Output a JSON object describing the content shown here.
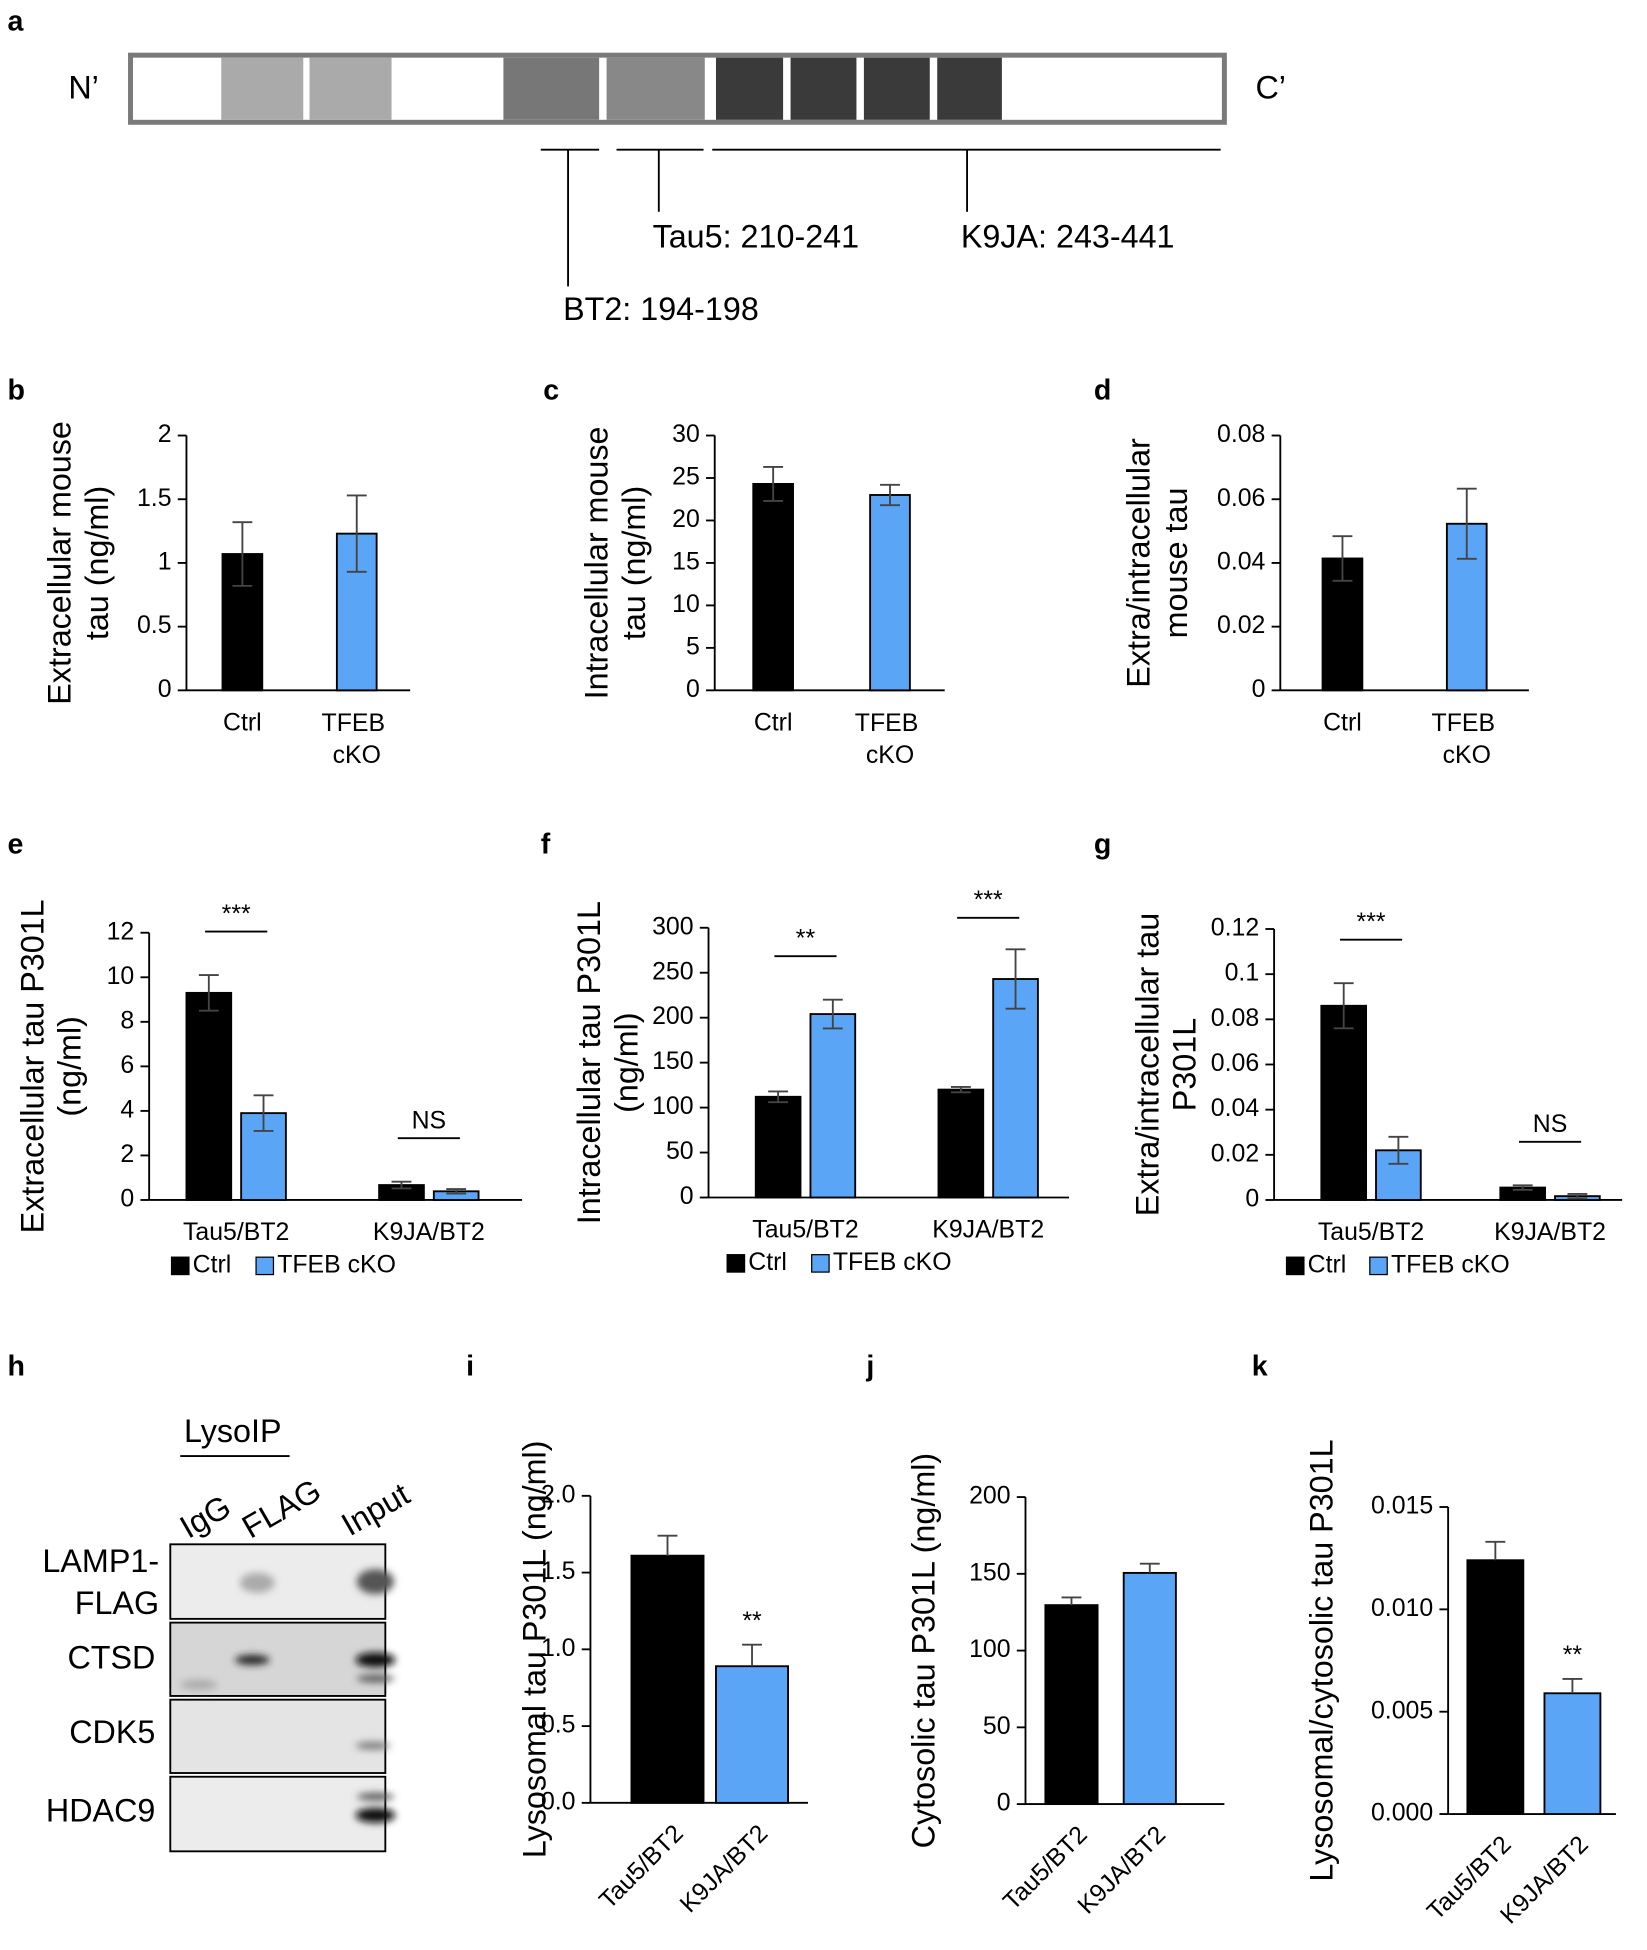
{
  "diagram": {
    "panel": "a",
    "n_label": "N’",
    "c_label": "C’",
    "epitopes": [
      "BT2: 194-198",
      "Tau5: 210-241",
      "K9JA: 243-441"
    ]
  },
  "chart_data": [
    {
      "panel": "b",
      "type": "bar",
      "ylabel": [
        "Extracellular mouse",
        "tau (ng/ml)"
      ],
      "categories": [
        "Ctrl",
        "TFEB cKO"
      ],
      "values": [
        1.07,
        1.23
      ],
      "errors": [
        0.25,
        0.3
      ],
      "colors": [
        "#000000",
        "#5aa5f5"
      ],
      "error_bars": "both",
      "ylim": [
        0,
        2
      ],
      "yticks": [
        0,
        0.5,
        1,
        1.5,
        2
      ]
    },
    {
      "panel": "c",
      "type": "bar",
      "ylabel": [
        "Intracellular mouse",
        "tau (ng/ml)"
      ],
      "categories": [
        "Ctrl",
        "TFEB cKO"
      ],
      "values": [
        24.3,
        23.0
      ],
      "errors": [
        2.0,
        1.2
      ],
      "colors": [
        "#000000",
        "#5aa5f5"
      ],
      "error_bars": "both",
      "ylim": [
        0,
        30
      ],
      "yticks": [
        0,
        5,
        10,
        15,
        20,
        25,
        30
      ]
    },
    {
      "panel": "d",
      "type": "bar",
      "ylabel": [
        "Extra/intracellular",
        "mouse tau"
      ],
      "categories": [
        "Ctrl",
        "TFEB cKO"
      ],
      "values": [
        0.0414,
        0.0523
      ],
      "errors": [
        0.007,
        0.011
      ],
      "colors": [
        "#000000",
        "#5aa5f5"
      ],
      "error_bars": "both",
      "ylim": [
        0,
        0.08
      ],
      "yticks": [
        0,
        0.02,
        0.04,
        0.06,
        0.08
      ]
    },
    {
      "panel": "e",
      "type": "bar",
      "ylabel": [
        "Extracellular tau P301L",
        "(ng/ml)"
      ],
      "categories": [
        "Tau5/BT2",
        "K9JA/BT2"
      ],
      "series": [
        {
          "name": "Ctrl",
          "color": "#000000",
          "values": [
            9.3,
            0.67
          ],
          "errors": [
            0.8,
            0.15
          ]
        },
        {
          "name": "TFEB cKO",
          "color": "#5aa5f5",
          "values": [
            3.9,
            0.39
          ],
          "errors": [
            0.8,
            0.1
          ]
        }
      ],
      "significance": [
        "***",
        "NS"
      ],
      "error_bars": "both",
      "ylim": [
        0,
        12
      ],
      "yticks": [
        0,
        2,
        4,
        6,
        8,
        10,
        12
      ]
    },
    {
      "panel": "f",
      "type": "bar",
      "ylabel": [
        "Intracellular tau P301L",
        "(ng/ml)"
      ],
      "categories": [
        "Tau5/BT2",
        "K9JA/BT2"
      ],
      "series": [
        {
          "name": "Ctrl",
          "color": "#000000",
          "values": [
            112,
            120
          ],
          "errors": [
            6,
            3
          ]
        },
        {
          "name": "TFEB cKO",
          "color": "#5aa5f5",
          "values": [
            204,
            243
          ],
          "errors": [
            16,
            33
          ]
        }
      ],
      "significance": [
        "**",
        "***"
      ],
      "error_bars": "both",
      "ylim": [
        0,
        300
      ],
      "yticks": [
        0,
        50,
        100,
        150,
        200,
        250,
        300
      ]
    },
    {
      "panel": "g",
      "type": "bar",
      "ylabel": [
        "Extra/intracellular tau",
        "P301L"
      ],
      "categories": [
        "Tau5/BT2",
        "K9JA/BT2"
      ],
      "series": [
        {
          "name": "Ctrl",
          "color": "#000000",
          "values": [
            0.086,
            0.0055
          ],
          "errors": [
            0.01,
            0.001
          ]
        },
        {
          "name": "TFEB cKO",
          "color": "#5aa5f5",
          "values": [
            0.022,
            0.0017
          ],
          "errors": [
            0.006,
            0.001
          ]
        }
      ],
      "significance": [
        "***",
        "NS"
      ],
      "error_bars": "both",
      "ylim": [
        0,
        0.12
      ],
      "yticks": [
        0,
        0.02,
        0.04,
        0.06,
        0.08,
        0.1,
        0.12
      ]
    },
    {
      "panel": "i",
      "type": "bar",
      "ylabel": [
        "Lysosomal tau P301L (ng/ml)"
      ],
      "categories": [
        "Tau5/BT2",
        "K9JA/BT2"
      ],
      "values": [
        1.61,
        0.89
      ],
      "errors": [
        0.13,
        0.14
      ],
      "colors": [
        "#000000",
        "#5aa5f5"
      ],
      "significance": [
        null,
        "**"
      ],
      "error_bars": "upper",
      "ylim": [
        0,
        2
      ],
      "yticks": [
        {
          "value": 0,
          "label": "0.0"
        },
        {
          "value": 0.5,
          "label": "0.5"
        },
        {
          "value": 1,
          "label": "1.0"
        },
        {
          "value": 1.5,
          "label": "1.5"
        },
        {
          "value": 2,
          "label": "2.0"
        }
      ]
    },
    {
      "panel": "j",
      "type": "bar",
      "ylabel": [
        "Cytosolic tau P301L (ng/ml)"
      ],
      "categories": [
        "Tau5/BT2",
        "K9JA/BT2"
      ],
      "values": [
        129.6,
        150.6
      ],
      "errors": [
        5,
        6
      ],
      "colors": [
        "#000000",
        "#5aa5f5"
      ],
      "error_bars": "upper",
      "ylim": [
        0,
        200
      ],
      "yticks": [
        0,
        50,
        100,
        150,
        200
      ]
    },
    {
      "panel": "k",
      "type": "bar",
      "ylabel": [
        "Lysosomal/cytosolic tau P301L"
      ],
      "categories": [
        "Tau5/BT2",
        "K9JA/BT2"
      ],
      "values": [
        0.0124,
        0.0059
      ],
      "errors": [
        0.0009,
        0.0007
      ],
      "colors": [
        "#000000",
        "#5aa5f5"
      ],
      "significance": [
        null,
        "**"
      ],
      "error_bars": "upper",
      "ylim": [
        0,
        0.015
      ],
      "yticks": [
        {
          "value": 0,
          "label": "0.000"
        },
        {
          "value": 0.005,
          "label": "0.005"
        },
        {
          "value": 0.01,
          "label": "0.010"
        },
        {
          "value": 0.015,
          "label": "0.015"
        }
      ]
    }
  ],
  "blot": {
    "panel": "h",
    "group_label": "LysoIP",
    "lanes": [
      "IgG",
      "FLAG",
      "Input"
    ],
    "rows": [
      "LAMP1-FLAG",
      "CTSD",
      "CDK5",
      "HDAC9"
    ]
  }
}
